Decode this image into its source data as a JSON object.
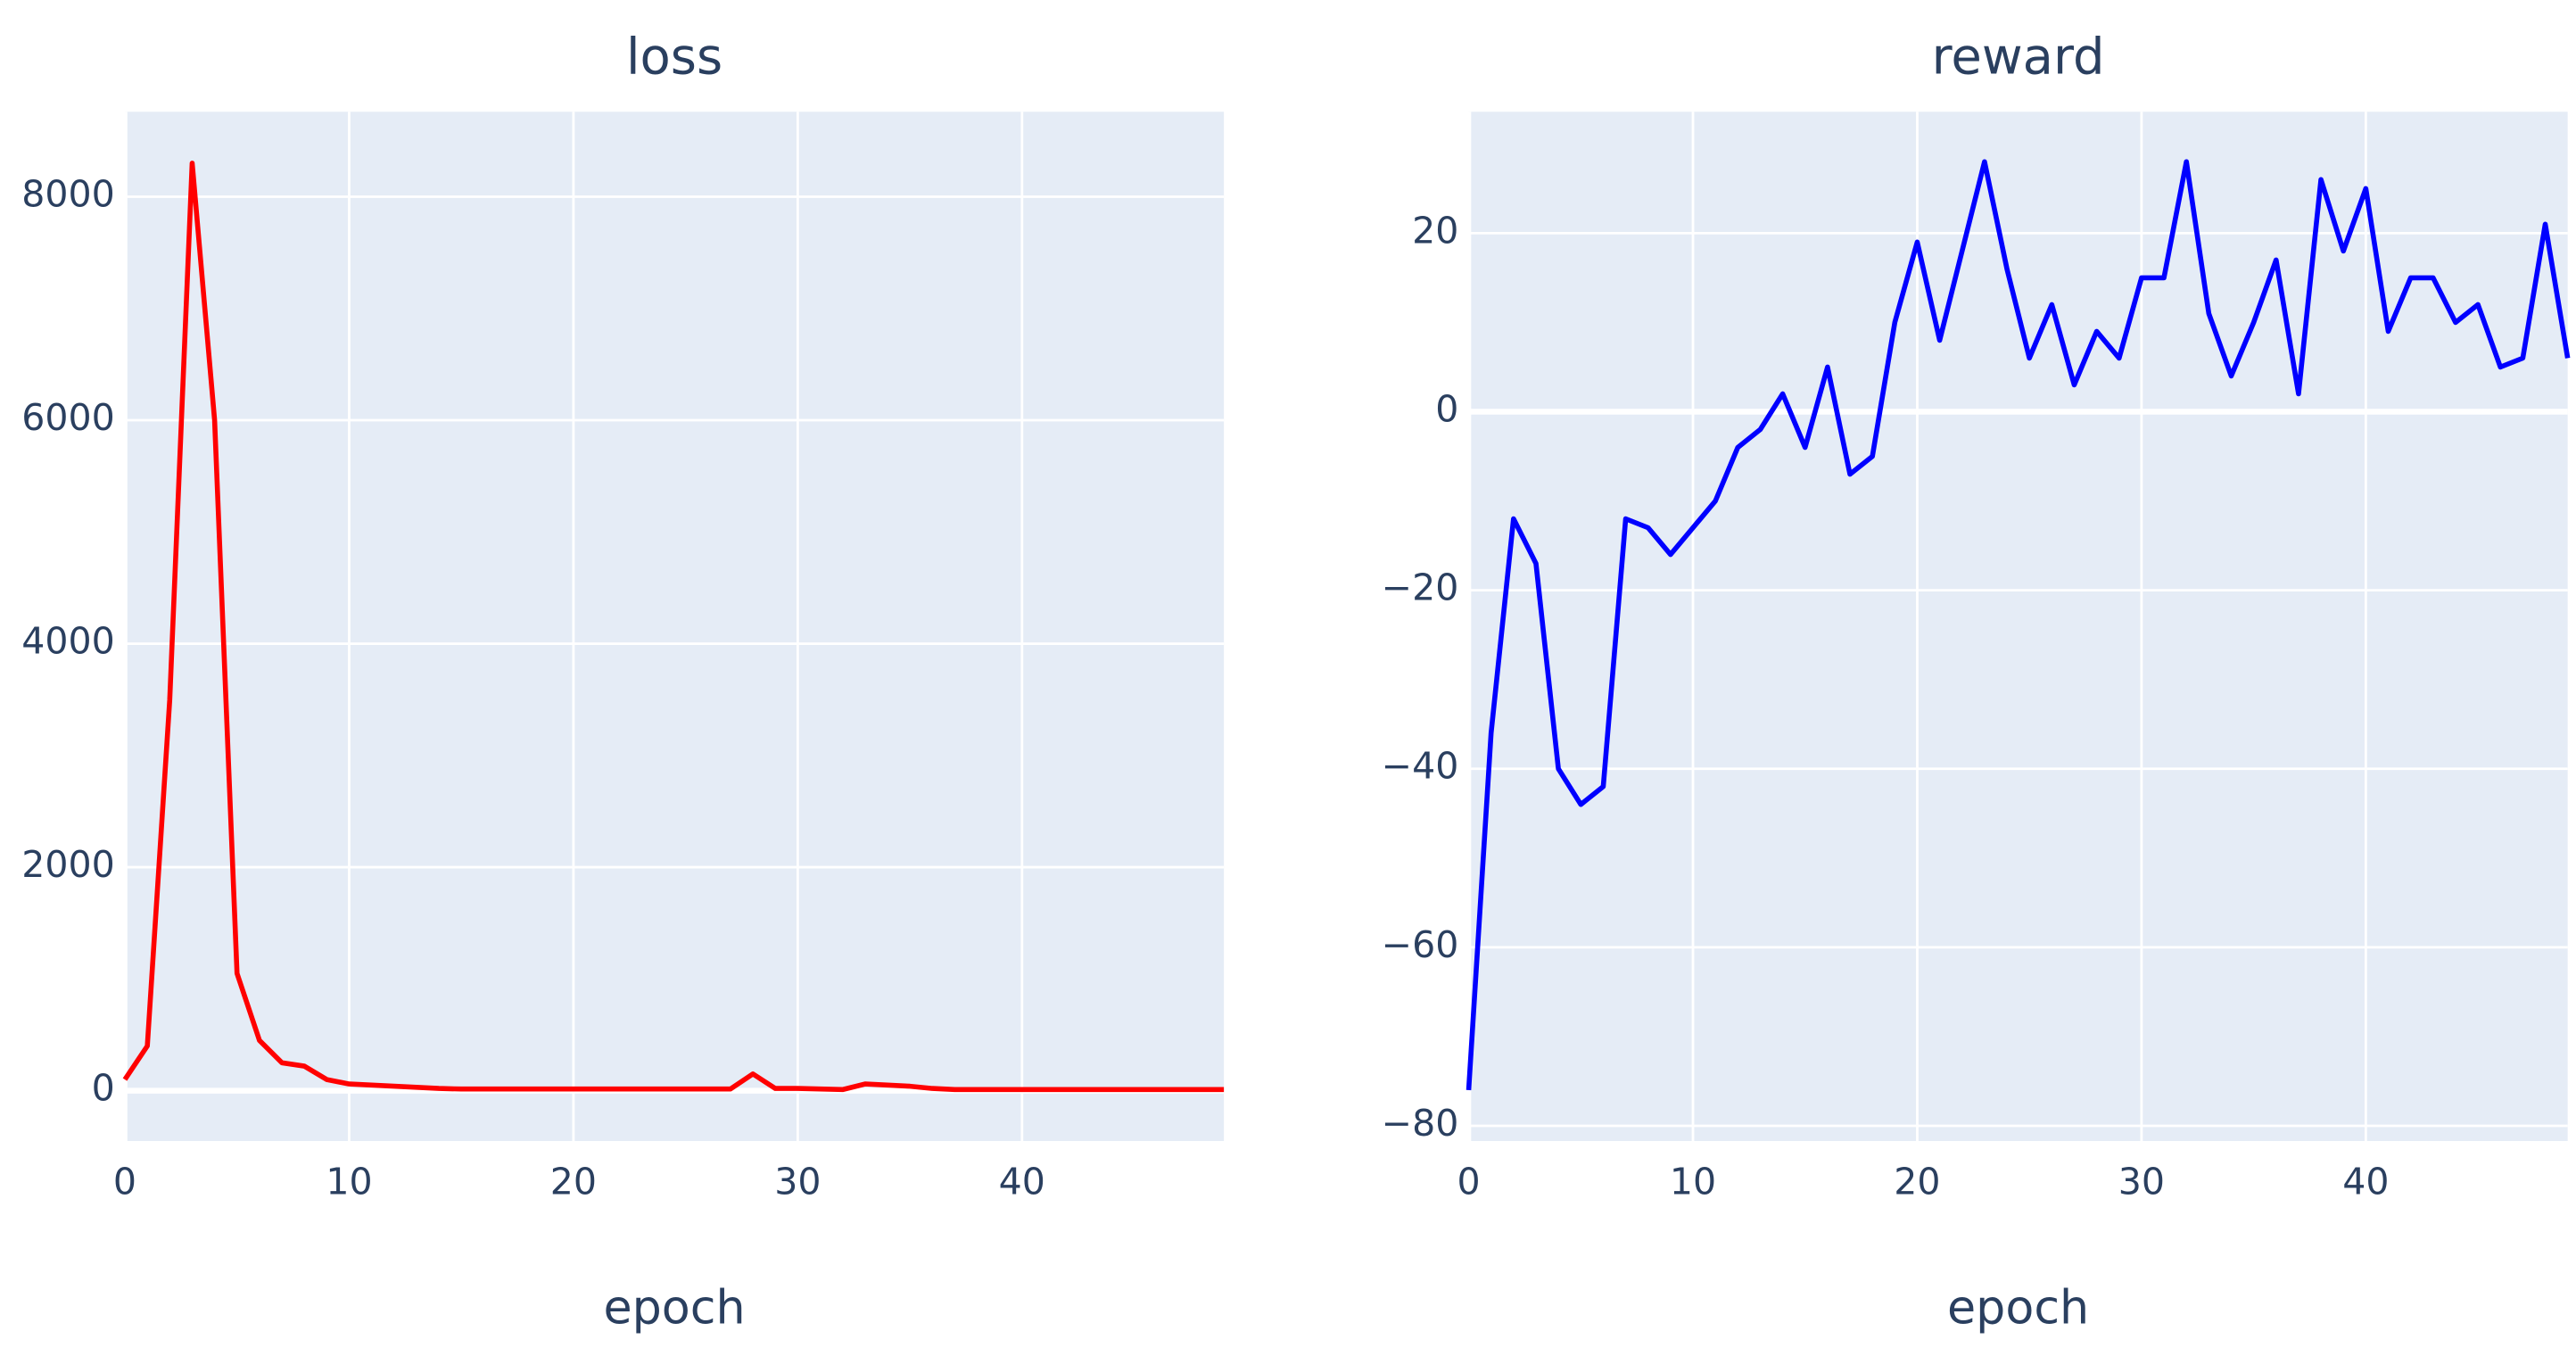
{
  "chart_data": [
    {
      "type": "line",
      "title": "loss",
      "x_label": "epoch",
      "x": [
        0,
        1,
        2,
        3,
        4,
        5,
        6,
        7,
        8,
        9,
        10,
        11,
        12,
        13,
        14,
        15,
        16,
        17,
        18,
        19,
        20,
        21,
        22,
        23,
        24,
        25,
        26,
        27,
        28,
        29,
        30,
        31,
        32,
        33,
        34,
        35,
        36,
        37,
        38,
        39,
        40,
        41,
        42,
        43,
        44,
        45,
        46,
        47,
        48,
        49
      ],
      "series": [
        {
          "name": "loss",
          "color": "#ff0000",
          "values": [
            100,
            400,
            3500,
            8300,
            6000,
            1050,
            450,
            250,
            220,
            100,
            60,
            50,
            40,
            30,
            20,
            15,
            15,
            15,
            15,
            15,
            15,
            15,
            15,
            15,
            15,
            15,
            15,
            15,
            150,
            20,
            20,
            15,
            10,
            60,
            50,
            40,
            20,
            10,
            10,
            10,
            10,
            10,
            10,
            10,
            10,
            10,
            10,
            10,
            10,
            10
          ]
        }
      ],
      "xlim": [
        0,
        49
      ],
      "xticks": [
        0,
        10,
        20,
        30,
        40
      ],
      "ylim": [
        -450,
        8760
      ],
      "yticks": [
        0,
        2000,
        4000,
        6000,
        8000
      ],
      "grid": true
    },
    {
      "type": "line",
      "title": "reward",
      "x_label": "epoch",
      "x": [
        0,
        1,
        2,
        3,
        4,
        5,
        6,
        7,
        8,
        9,
        10,
        11,
        12,
        13,
        14,
        15,
        16,
        17,
        18,
        19,
        20,
        21,
        22,
        23,
        24,
        25,
        26,
        27,
        28,
        29,
        30,
        31,
        32,
        33,
        34,
        35,
        36,
        37,
        38,
        39,
        40,
        41,
        42,
        43,
        44,
        45,
        46,
        47,
        48,
        49
      ],
      "series": [
        {
          "name": "reward",
          "color": "#0000ff",
          "values": [
            -76,
            -36,
            -12,
            -17,
            -40,
            -44,
            -42,
            -12,
            -13,
            -16,
            -13,
            -10,
            -4,
            -2,
            2,
            -4,
            5,
            -7,
            -5,
            10,
            19,
            8,
            18,
            28,
            16,
            6,
            12,
            3,
            9,
            6,
            15,
            15,
            28,
            11,
            4,
            10,
            17,
            2,
            26,
            18,
            25,
            9,
            15,
            15,
            10,
            12,
            5,
            6,
            21,
            6
          ]
        }
      ],
      "xlim": [
        0,
        49
      ],
      "xticks": [
        0,
        10,
        20,
        30,
        40
      ],
      "ylim": [
        -81.7,
        33.6
      ],
      "yticks": [
        {
          "value": -80,
          "label": "−80"
        },
        {
          "value": -60,
          "label": "−60"
        },
        {
          "value": -40,
          "label": "−40"
        },
        {
          "value": -20,
          "label": "−20"
        },
        0,
        20
      ],
      "grid": true
    }
  ]
}
